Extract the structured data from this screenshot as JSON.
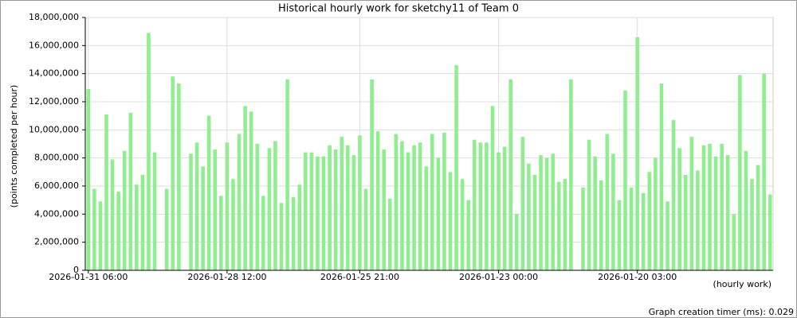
{
  "chart_data": {
    "type": "bar",
    "title": "Historical hourly work for sketchy11 of Team 0",
    "y_label": "(points completed per hour)",
    "x_label": "(hourly work)",
    "footer": "Graph creation timer (ms): 0.029",
    "color": "#90ee90",
    "grid": true,
    "categories": [
      "2026-01-31 06:00",
      null,
      null,
      null,
      null,
      null,
      null,
      null,
      null,
      null,
      null,
      null,
      null,
      null,
      null,
      null,
      null,
      null,
      null,
      null,
      null,
      null,
      null,
      "2026-01-28 12:00",
      null,
      null,
      null,
      null,
      null,
      null,
      null,
      null,
      null,
      null,
      null,
      null,
      null,
      null,
      null,
      null,
      null,
      null,
      null,
      null,
      null,
      "2026-01-25 21:00",
      null,
      null,
      null,
      null,
      null,
      null,
      null,
      null,
      null,
      null,
      null,
      null,
      null,
      null,
      null,
      null,
      null,
      null,
      null,
      null,
      null,
      null,
      "2026-01-23 00:00",
      null,
      null,
      null,
      null,
      null,
      null,
      null,
      null,
      null,
      null,
      null,
      null,
      null,
      null,
      null,
      null,
      null,
      null,
      null,
      null,
      null,
      null,
      "2026-01-20 03:00",
      null,
      null,
      null,
      null,
      null,
      null,
      null,
      null,
      null,
      null,
      null,
      null,
      null,
      null,
      null,
      null,
      null,
      null,
      null,
      null,
      null,
      null
    ],
    "values": [
      12900000,
      5800000,
      4900000,
      11100000,
      7900000,
      5600000,
      8500000,
      11200000,
      6100000,
      6800000,
      16900000,
      8400000,
      null,
      5800000,
      13800000,
      13300000,
      null,
      8300000,
      9100000,
      7400000,
      11000000,
      8600000,
      5300000,
      9100000,
      6500000,
      9700000,
      11700000,
      11300000,
      9000000,
      5300000,
      8700000,
      9200000,
      4800000,
      13600000,
      5200000,
      6100000,
      8400000,
      8400000,
      8100000,
      8100000,
      8900000,
      8600000,
      9500000,
      8900000,
      8200000,
      9600000,
      5800000,
      13600000,
      9900000,
      8600000,
      5100000,
      9700000,
      9200000,
      8400000,
      8900000,
      9100000,
      7400000,
      9700000,
      8000000,
      9800000,
      7000000,
      14600000,
      6500000,
      5000000,
      9300000,
      9100000,
      9100000,
      11700000,
      8400000,
      8800000,
      13600000,
      4000000,
      9500000,
      7600000,
      6800000,
      8200000,
      8000000,
      8300000,
      6300000,
      6500000,
      13600000,
      null,
      5900000,
      9300000,
      8100000,
      6400000,
      9700000,
      8300000,
      5000000,
      12800000,
      5900000,
      16600000,
      5500000,
      7000000,
      8000000,
      13300000,
      4900000,
      10700000,
      8700000,
      6800000,
      9500000,
      7100000,
      8900000,
      9000000,
      8100000,
      9000000,
      8200000,
      4000000,
      13900000,
      8500000,
      6500000,
      7500000,
      14000000,
      5400000
    ],
    "ylim": [
      0,
      18000000
    ],
    "yticks": [
      0,
      {
        "value": 2000000,
        "label": "2,000,000"
      },
      {
        "value": 4000000,
        "label": "4,000,000"
      },
      {
        "value": 6000000,
        "label": "6,000,000"
      },
      {
        "value": 8000000,
        "label": "8,000,000"
      },
      {
        "value": 10000000,
        "label": "10,000,000"
      },
      {
        "value": 12000000,
        "label": "12,000,000"
      },
      {
        "value": 14000000,
        "label": "14,000,000"
      },
      {
        "value": 16000000,
        "label": "16,000,000"
      },
      {
        "value": 18000000,
        "label": "18,000,000"
      }
    ]
  }
}
